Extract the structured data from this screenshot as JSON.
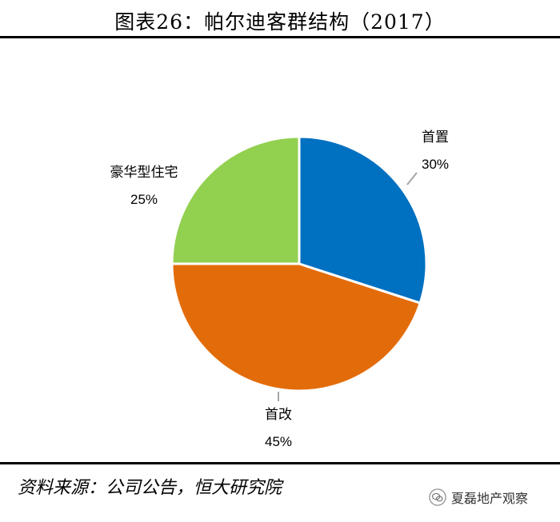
{
  "header": {
    "title": "图表26：帕尔迪客群结构（2017）"
  },
  "chart_data": {
    "type": "pie",
    "title": "图表26：帕尔迪客群结构（2017）",
    "slices": [
      {
        "label": "首置",
        "value": 30,
        "value_label": "30%",
        "color": "#0070c0"
      },
      {
        "label": "首改",
        "value": 45,
        "value_label": "45%",
        "color": "#e36c0a"
      },
      {
        "label": "豪华型住宅",
        "value": 25,
        "value_label": "25%",
        "color": "#92d050"
      }
    ],
    "start_angle": "12 o'clock",
    "direction": "clockwise"
  },
  "footer": {
    "source": "资料来源：公司公告，恒大研究院"
  },
  "watermark": {
    "text": "夏磊地产观察",
    "icon": "wechat-icon"
  }
}
